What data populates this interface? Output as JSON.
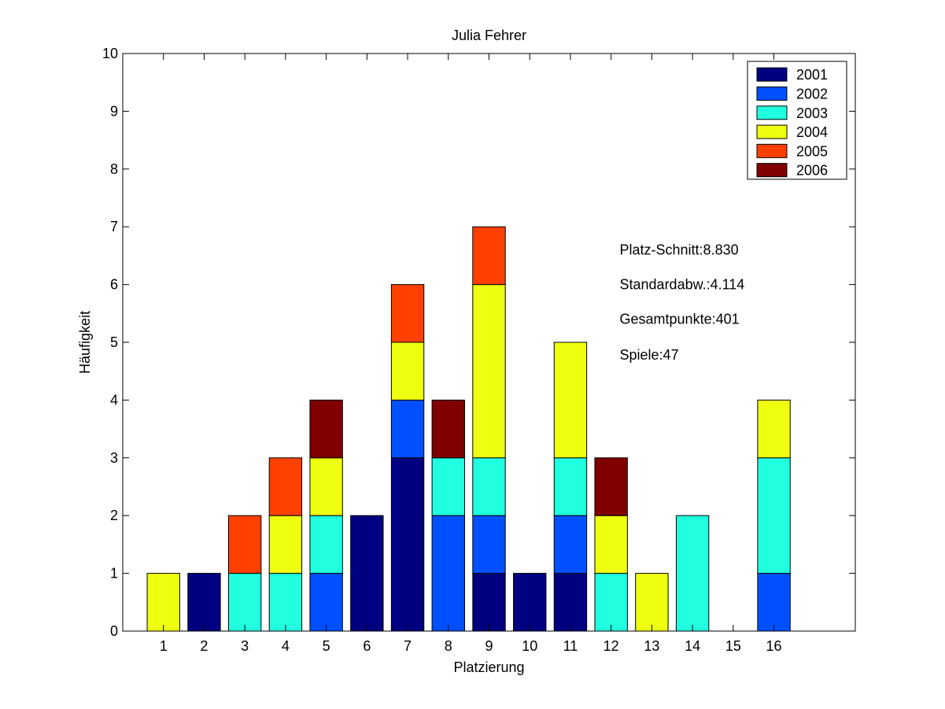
{
  "chart_data": {
    "type": "bar",
    "stacked": true,
    "title": "Julia Fehrer",
    "xlabel": "Platzierung",
    "ylabel": "Häufigkeit",
    "xlim": [
      0,
      18
    ],
    "ylim": [
      0,
      10
    ],
    "xticks": [
      "1",
      "2",
      "3",
      "4",
      "5",
      "6",
      "7",
      "8",
      "9",
      "10",
      "11",
      "12",
      "13",
      "14",
      "15",
      "16"
    ],
    "yticks": [
      "0",
      "1",
      "2",
      "3",
      "4",
      "5",
      "6",
      "7",
      "8",
      "9",
      "10"
    ],
    "categories": [
      1,
      2,
      3,
      4,
      5,
      6,
      7,
      8,
      9,
      10,
      11,
      12,
      13,
      14,
      15,
      16
    ],
    "series": [
      {
        "name": "2001",
        "color": "#000080",
        "values": [
          0,
          1,
          0,
          0,
          0,
          2,
          3,
          0,
          1,
          1,
          1,
          0,
          0,
          0,
          0,
          0
        ]
      },
      {
        "name": "2002",
        "color": "#0050FF",
        "values": [
          0,
          0,
          0,
          0,
          1,
          0,
          1,
          2,
          1,
          0,
          1,
          0,
          0,
          0,
          0,
          1
        ]
      },
      {
        "name": "2003",
        "color": "#20FFDF",
        "values": [
          0,
          0,
          1,
          1,
          1,
          0,
          0,
          1,
          1,
          0,
          1,
          1,
          0,
          2,
          0,
          2
        ]
      },
      {
        "name": "2004",
        "color": "#EFFF10",
        "values": [
          1,
          0,
          0,
          1,
          1,
          0,
          1,
          0,
          3,
          0,
          2,
          1,
          1,
          0,
          0,
          1
        ]
      },
      {
        "name": "2005",
        "color": "#FF4000",
        "values": [
          0,
          0,
          1,
          1,
          0,
          0,
          1,
          0,
          1,
          0,
          0,
          0,
          0,
          0,
          0,
          0
        ]
      },
      {
        "name": "2006",
        "color": "#800000",
        "values": [
          0,
          0,
          0,
          0,
          1,
          0,
          0,
          1,
          0,
          0,
          0,
          1,
          0,
          0,
          0,
          0
        ]
      }
    ],
    "legend_position": "top-right",
    "grid": false,
    "annotations": [
      "Platz-Schnitt:8.830",
      "Standardabw.:4.114",
      "Gesamtpunkte:401",
      "Spiele:47"
    ]
  }
}
